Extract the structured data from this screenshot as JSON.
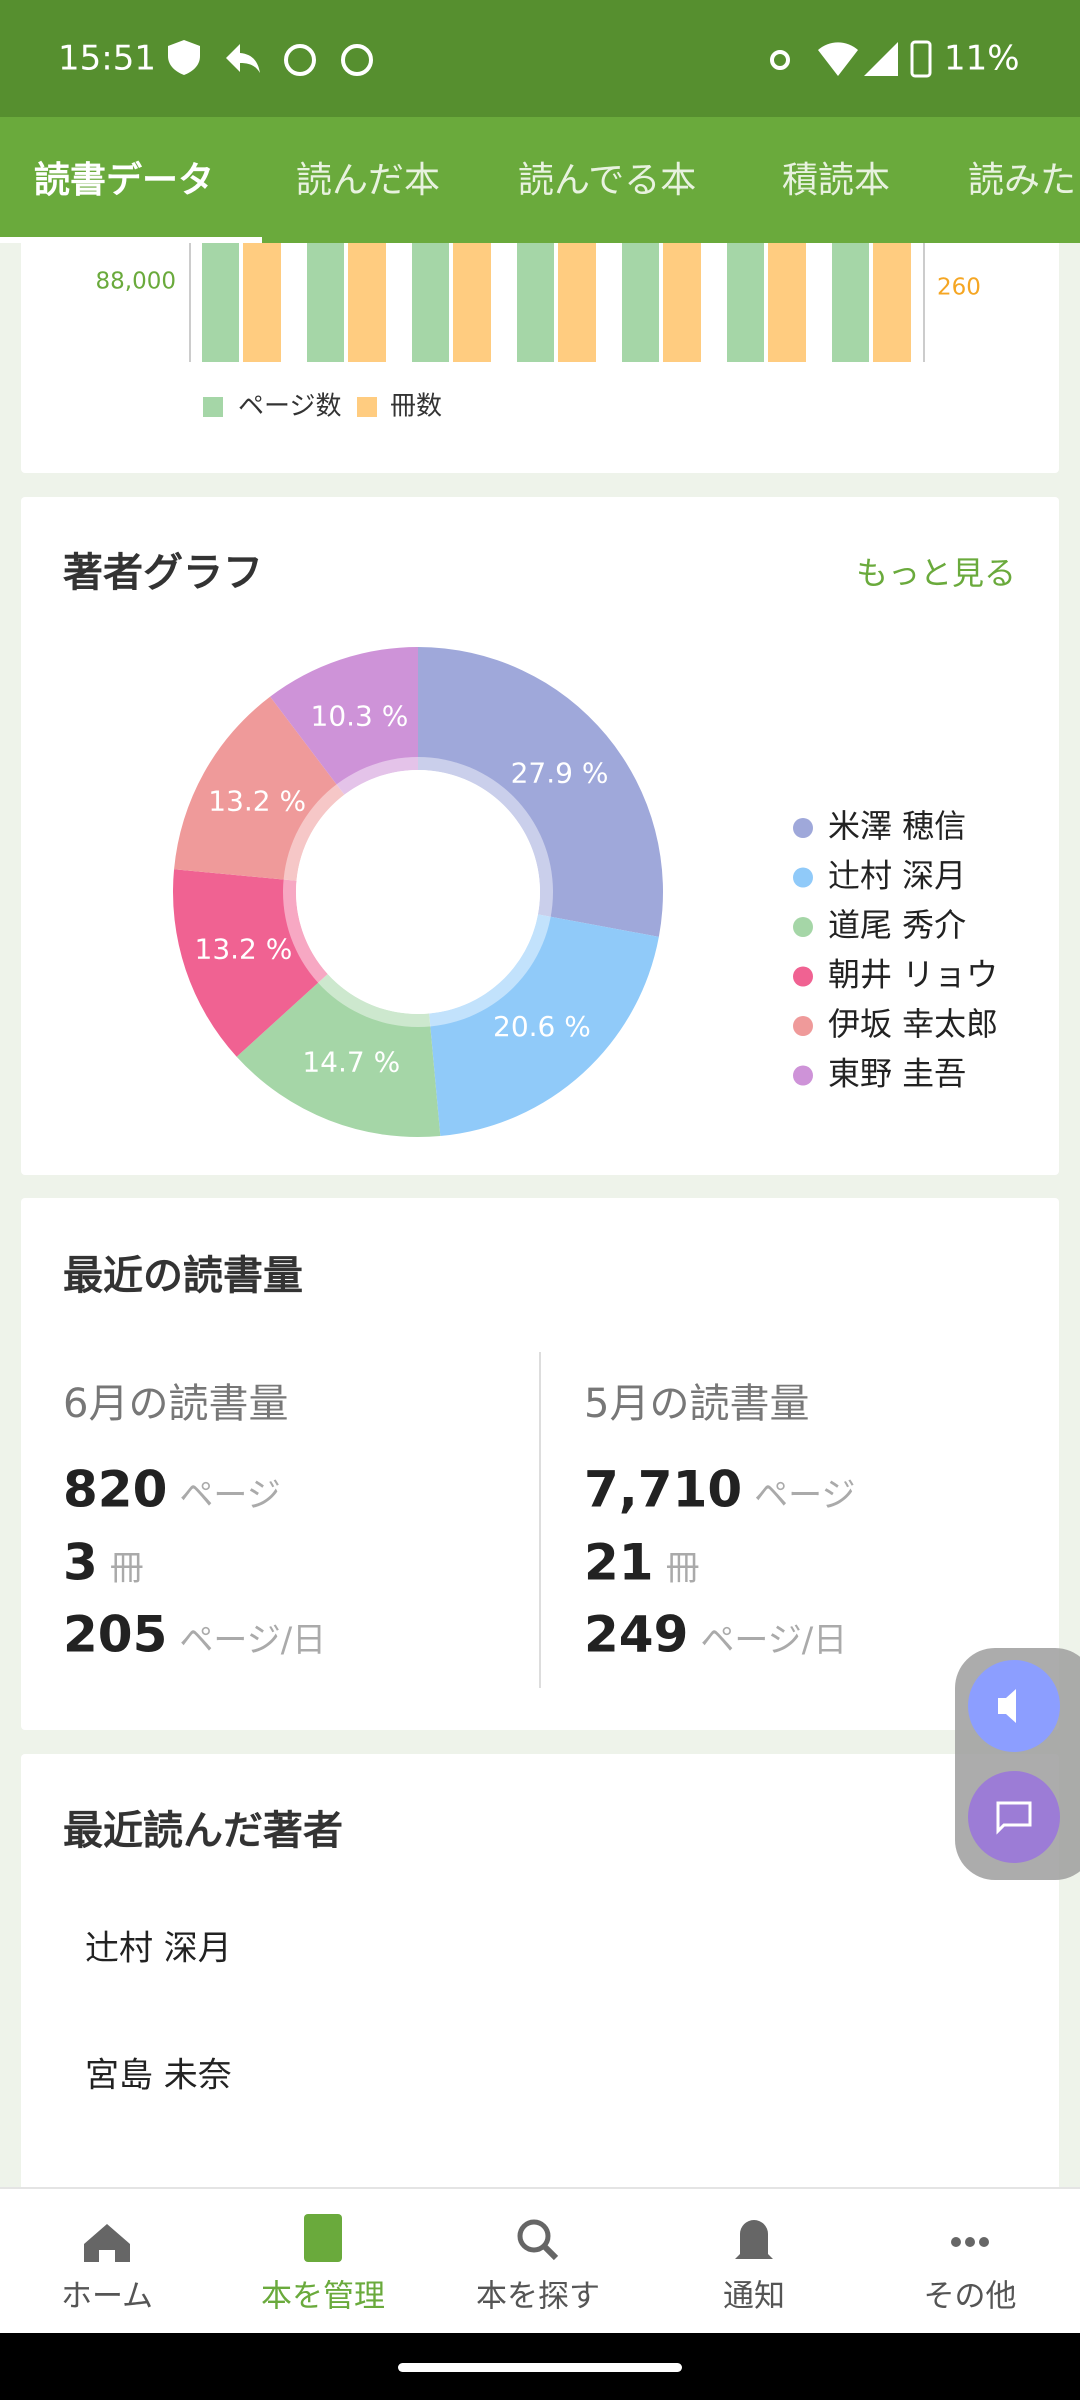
{
  "status_bar": {
    "time": "15:51",
    "battery": "11%"
  },
  "tabs": [
    "読書データ",
    "読んだ本",
    "読んでる本",
    "積読本",
    "読みた"
  ],
  "reading_chart": {
    "left_tick": {
      "value": 88000,
      "label": "88,000"
    },
    "right_tick": 260,
    "legend": [
      "ページ数",
      "冊数"
    ],
    "colors": [
      "#a5d6a7",
      "#ffcc80"
    ]
  },
  "author_chart": {
    "type": "pie",
    "title": "著者グラフ",
    "more_link": "もっと見る",
    "categories": [
      "米澤 穂信",
      "辻村 深月",
      "道尾 秀介",
      "朝井 リョウ",
      "伊坂 幸太郎",
      "東野 圭吾"
    ],
    "values": [
      27.9,
      20.6,
      14.7,
      13.2,
      13.2,
      10.3
    ],
    "value_labels": [
      "27.9 %",
      "20.6 %",
      "14.7 %",
      "13.2 %",
      "13.2 %",
      "10.3 %"
    ],
    "colors": [
      "#9fa8da",
      "#90caf9",
      "#a5d6a7",
      "#f06292",
      "#ef9a9a",
      "#ce93d8"
    ]
  },
  "recent_volume": {
    "title": "最近の読書量",
    "page_unit": "ページ",
    "book_unit": "冊",
    "per_day_unit": "ページ/日",
    "periods": [
      {
        "label": "6月の読書量",
        "pages": 820,
        "books": 3,
        "per_day": 205
      },
      {
        "label": "5月の読書量",
        "pages": {
          "value": 7710,
          "label": "7,710"
        },
        "books": 21,
        "per_day": 249
      }
    ]
  },
  "recent_authors": {
    "title": "最近読んだ著者",
    "items": [
      "辻村 深月",
      "宮島 未奈"
    ]
  },
  "bottom_nav": {
    "items": [
      "ホーム",
      "本を管理",
      "本を探す",
      "通知",
      "その他"
    ],
    "active": 1
  }
}
